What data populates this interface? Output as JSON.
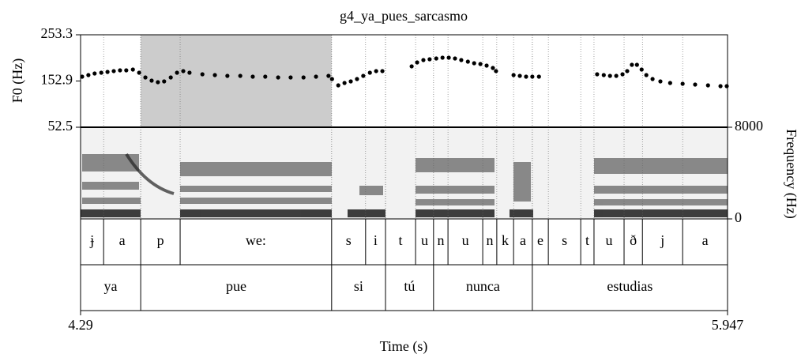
{
  "chart_data": {
    "type": "scatter",
    "title": "g4_ya_pues_sarcasmo",
    "x_label": "Time (s)",
    "y_label": "F0 (Hz)",
    "y2_label": "Frequency (Hz)",
    "xlim": [
      4.29,
      5.947
    ],
    "xticks": [
      4.29,
      5.947
    ],
    "ylim": [
      52.5,
      253.3
    ],
    "yticks": [
      52.5,
      152.9,
      253.3
    ],
    "y2lim": [
      0,
      8000
    ],
    "y2ticks": [
      0,
      8000
    ],
    "highlight": [
      4.444,
      4.933
    ],
    "color": "#000000",
    "x": [
      4.294,
      4.31,
      4.326,
      4.343,
      4.359,
      4.375,
      4.391,
      4.407,
      4.424,
      4.44,
      4.456,
      4.472,
      4.488,
      4.504,
      4.521,
      4.537,
      4.553,
      4.569,
      4.602,
      4.634,
      4.666,
      4.699,
      4.731,
      4.763,
      4.796,
      4.828,
      4.861,
      4.893,
      4.925,
      4.934,
      4.95,
      4.966,
      4.982,
      4.998,
      5.014,
      5.031,
      5.047,
      5.063,
      5.138,
      5.152,
      5.168,
      5.184,
      5.201,
      5.217,
      5.233,
      5.249,
      5.265,
      5.282,
      5.298,
      5.314,
      5.33,
      5.346,
      5.354,
      5.399,
      5.415,
      5.431,
      5.447,
      5.464,
      5.613,
      5.63,
      5.646,
      5.662,
      5.678,
      5.69,
      5.702,
      5.715,
      5.727,
      5.739,
      5.755,
      5.775,
      5.8,
      5.832,
      5.864,
      5.897,
      5.929,
      5.945
    ],
    "values": [
      162.3,
      165.8,
      169.2,
      170.9,
      172.6,
      174.4,
      176.1,
      176.1,
      177.8,
      170.9,
      160.6,
      153.8,
      150.3,
      152.0,
      160.6,
      170.9,
      174.4,
      170.9,
      167.5,
      165.8,
      164.1,
      164.1,
      162.3,
      162.3,
      160.6,
      160.6,
      160.6,
      162.3,
      164.1,
      157.2,
      143.5,
      148.6,
      152.0,
      157.2,
      164.1,
      170.9,
      174.4,
      174.4,
      184.7,
      193.2,
      198.4,
      200.1,
      201.8,
      203.5,
      203.5,
      201.8,
      198.4,
      194.9,
      191.5,
      189.8,
      186.4,
      181.2,
      174.4,
      165.8,
      164.1,
      162.3,
      162.3,
      162.3,
      167.5,
      165.8,
      164.1,
      164.1,
      167.5,
      174.4,
      188.1,
      188.1,
      177.8,
      165.8,
      157.2,
      152.0,
      148.6,
      146.9,
      145.2,
      143.5,
      141.7,
      141.7
    ],
    "phone_tier": {
      "labels": [
        "ɉ",
        "a",
        "p",
        "we:",
        "s",
        "i",
        "t",
        "u",
        "n",
        "u",
        "n",
        "k",
        "a",
        "e",
        "s",
        "t",
        "u",
        "ð",
        "j",
        "a"
      ],
      "boundaries": [
        4.349,
        4.444,
        4.545,
        4.933,
        5.02,
        5.071,
        5.148,
        5.194,
        5.231,
        5.32,
        5.356,
        5.399,
        5.447,
        5.488,
        5.571,
        5.605,
        5.682,
        5.729,
        5.832
      ]
    },
    "word_tier": {
      "labels": [
        "ya",
        "pue",
        "si",
        "tú",
        "nunca",
        "estudias"
      ],
      "boundaries": [
        4.444,
        4.933,
        5.071,
        5.194,
        5.447
      ]
    }
  }
}
